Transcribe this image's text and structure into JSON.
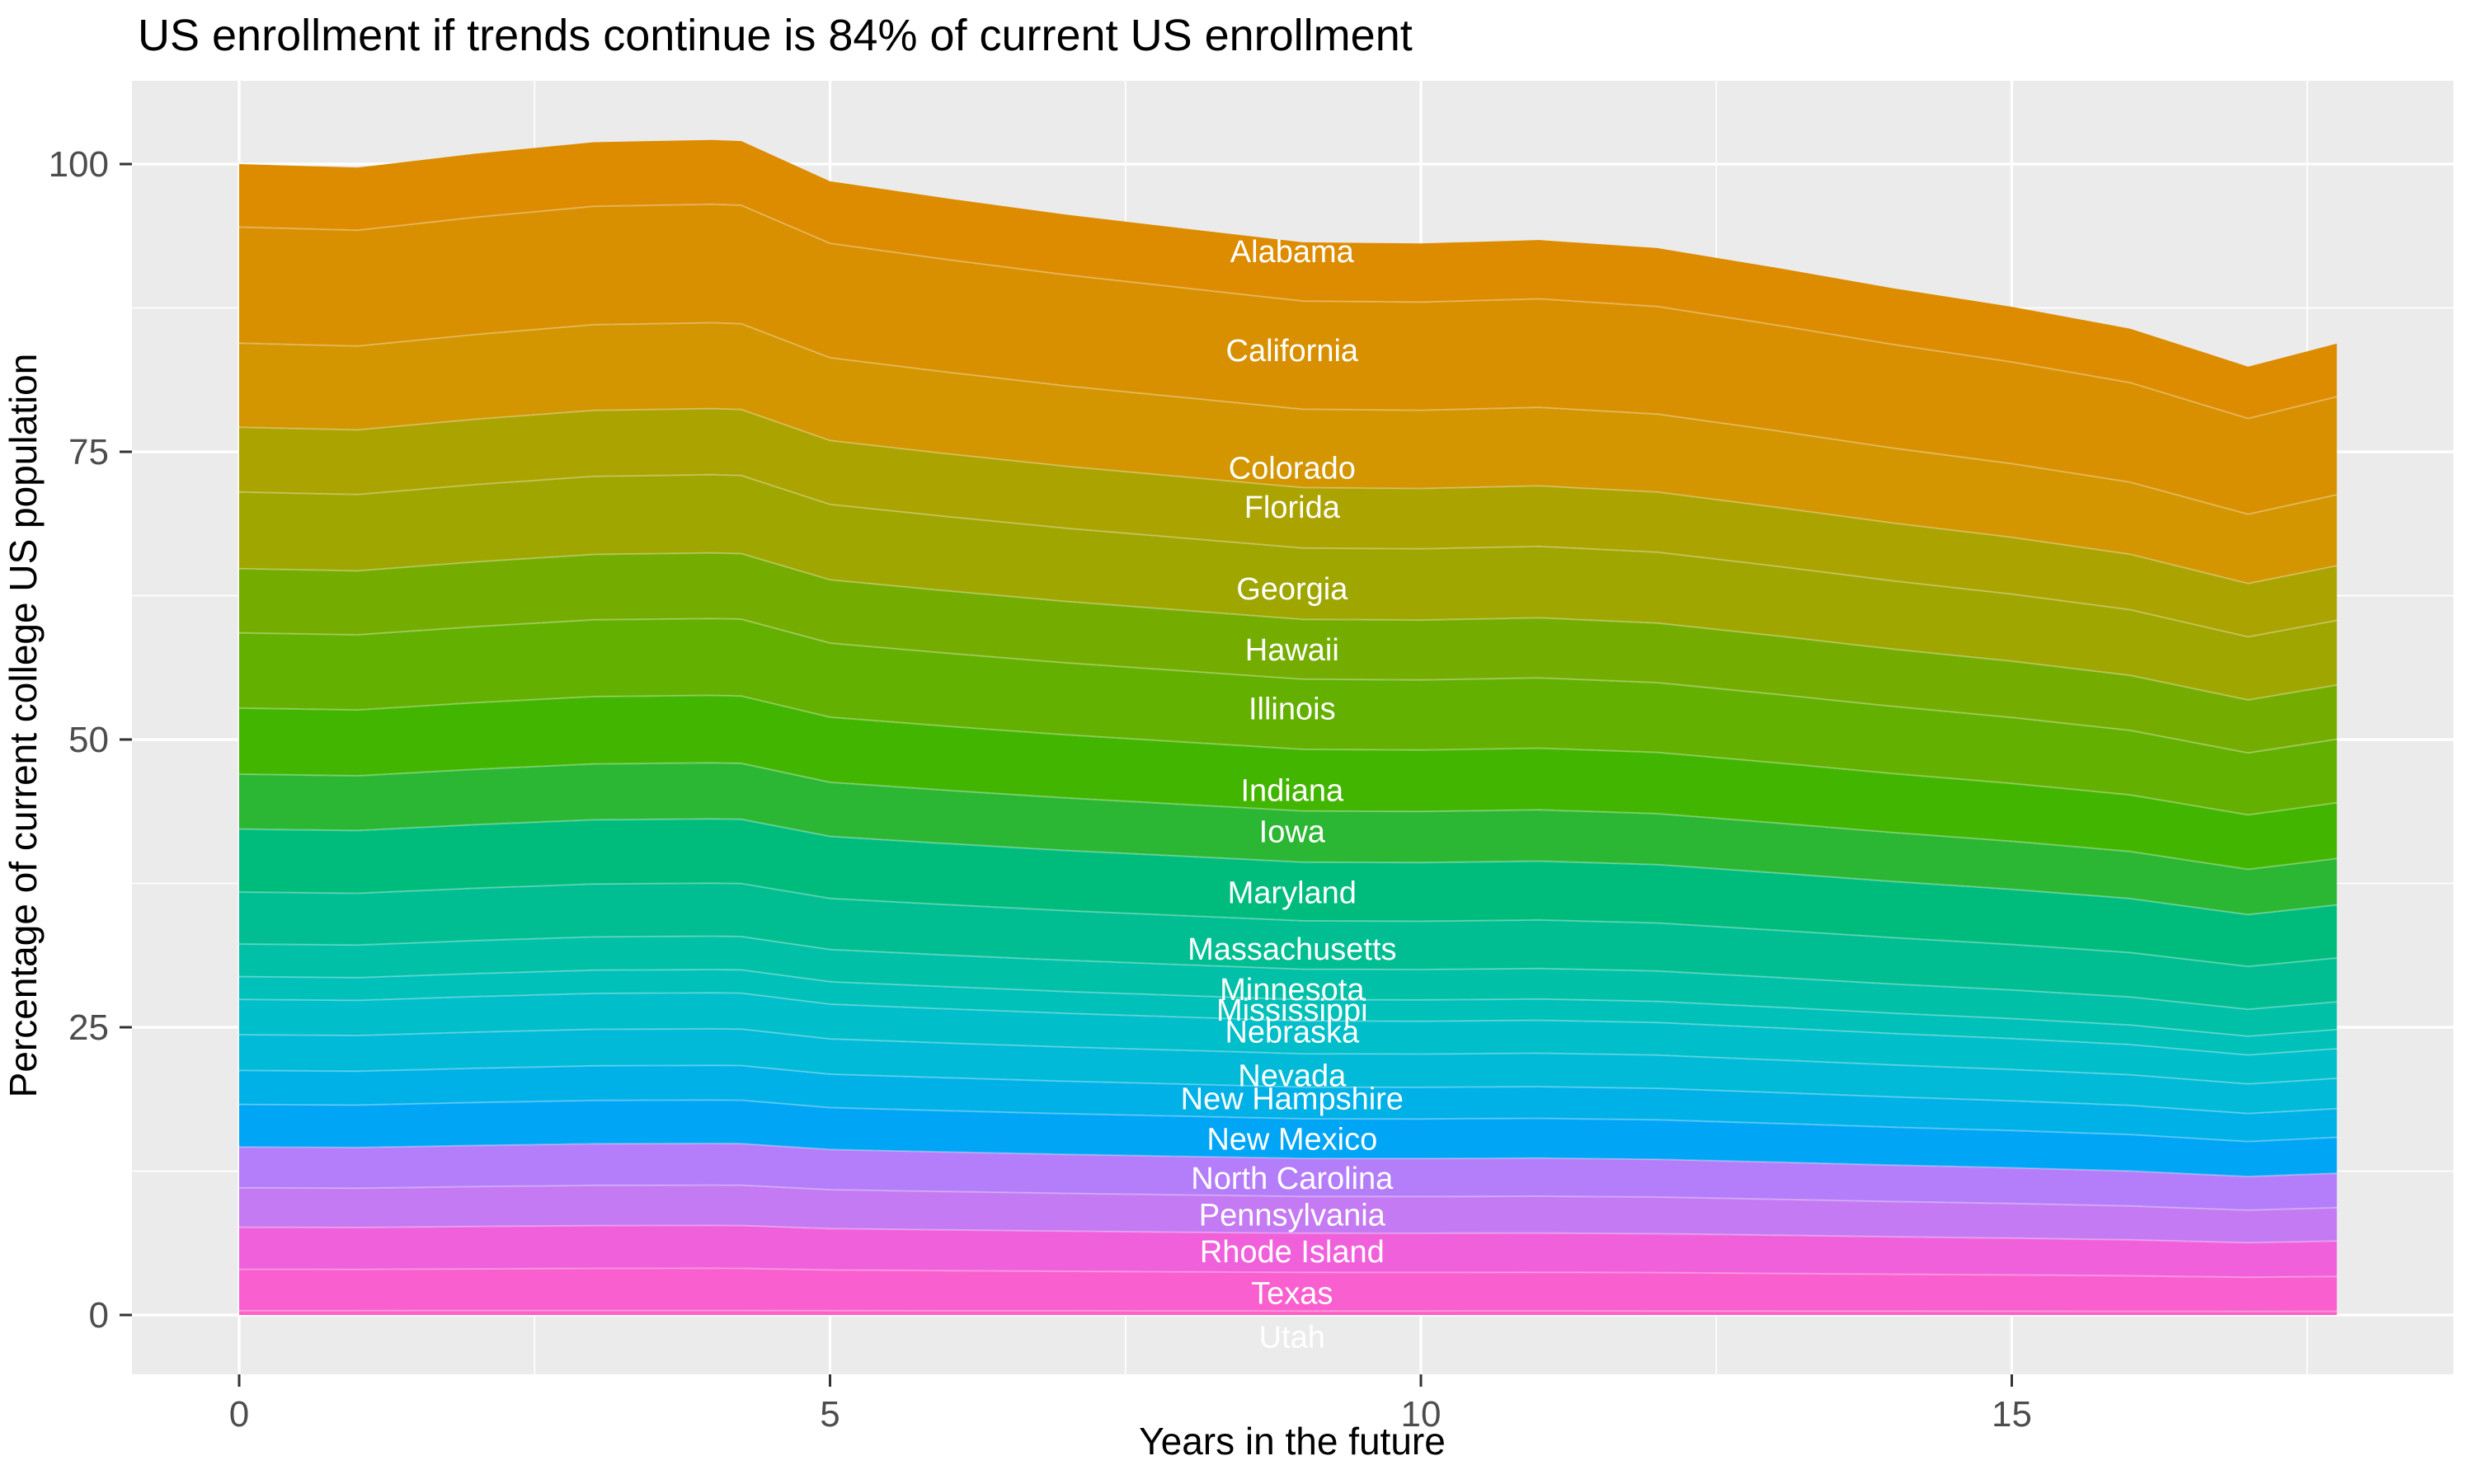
{
  "title": "US enrollment if trends continue is 84% of current US enrollment",
  "axes": {
    "x": {
      "label": "Years in the future",
      "ticks": [
        0,
        5,
        10,
        15
      ],
      "minor_ticks": [
        2.5,
        7.5,
        12.5,
        17.5
      ]
    },
    "y": {
      "label": "Percentage of current college US population",
      "ticks": [
        0,
        25,
        50,
        75,
        100
      ],
      "minor_ticks": [
        12.5,
        37.5,
        62.5,
        87.5
      ]
    }
  },
  "chart_data": {
    "type": "area",
    "stacked": true,
    "title": "US enrollment if trends continue is 84% of current US enrollment",
    "xlabel": "Years in the future",
    "ylabel": "Percentage of current college US population",
    "xlim": [
      -0.9,
      18.6
    ],
    "ylim": [
      -5.1,
      112.4
    ],
    "grid": true,
    "legend": false,
    "x": [
      0,
      1,
      2,
      3,
      4,
      4.25,
      5,
      6,
      7,
      8,
      9,
      10,
      11,
      12,
      13,
      14,
      15,
      16,
      17,
      17.75
    ],
    "total": [
      100,
      99.7,
      100.9,
      101.9,
      102.1,
      102.0,
      98.5,
      97.0,
      95.6,
      94.4,
      93.2,
      93.1,
      93.4,
      92.7,
      91.0,
      89.2,
      87.6,
      85.7,
      82.4,
      84.4
    ],
    "label_x": 8.91,
    "series": [
      {
        "name": "Alabama",
        "share_pct": 5.47,
        "label_y": 92.4,
        "color": "#DD8C00"
      },
      {
        "name": "California",
        "share_pct": 10.09,
        "label_y": 83.8,
        "color": "#D99000"
      },
      {
        "name": "Colorado",
        "share_pct": 7.3,
        "label_y": 73.6,
        "color": "#D39500"
      },
      {
        "name": "Florida",
        "share_pct": 5.63,
        "label_y": 70.2,
        "color": "#ABA300"
      },
      {
        "name": "Georgia",
        "share_pct": 6.65,
        "label_y": 63.1,
        "color": "#9FA600"
      },
      {
        "name": "Hawaii",
        "share_pct": 5.58,
        "label_y": 57.8,
        "color": "#74AD00"
      },
      {
        "name": "Illinois",
        "share_pct": 6.54,
        "label_y": 52.7,
        "color": "#63B000"
      },
      {
        "name": "Indiana",
        "share_pct": 5.74,
        "label_y": 45.6,
        "color": "#42B500"
      },
      {
        "name": "Iowa",
        "share_pct": 4.77,
        "label_y": 42.0,
        "color": "#2BB734"
      },
      {
        "name": "Maryland",
        "share_pct": 5.47,
        "label_y": 36.7,
        "color": "#00BC7C"
      },
      {
        "name": "Massachusetts",
        "share_pct": 4.51,
        "label_y": 31.8,
        "color": "#00BE92"
      },
      {
        "name": "Minnesota",
        "share_pct": 2.84,
        "label_y": 28.3,
        "color": "#00C0A8"
      },
      {
        "name": "Mississippi",
        "share_pct": 1.98,
        "label_y": 26.5,
        "color": "#00C0BA"
      },
      {
        "name": "Nebraska",
        "share_pct": 3.06,
        "label_y": 24.6,
        "color": "#00BECA"
      },
      {
        "name": "Nevada",
        "share_pct": 3.11,
        "label_y": 20.8,
        "color": "#00BAD8"
      },
      {
        "name": "New Hampshire",
        "share_pct": 2.95,
        "label_y": 18.8,
        "color": "#00B1E8"
      },
      {
        "name": "New Mexico",
        "share_pct": 3.7,
        "label_y": 15.3,
        "color": "#00A5F6"
      },
      {
        "name": "North Carolina",
        "share_pct": 3.54,
        "label_y": 11.9,
        "color": "#B47DF9"
      },
      {
        "name": "Pennsylvania",
        "share_pct": 3.43,
        "label_y": 8.7,
        "color": "#C47AF2"
      },
      {
        "name": "Rhode Island",
        "share_pct": 3.65,
        "label_y": 5.5,
        "color": "#F160DB"
      },
      {
        "name": "Texas",
        "share_pct": 3.59,
        "label_y": 1.9,
        "color": "#F95FCE"
      },
      {
        "name": "Utah",
        "share_pct": 0.38,
        "label_y": -1.9,
        "color": "#FB62C6"
      }
    ]
  },
  "colors": {
    "background": "#FFFFFF",
    "panel_bg": "#EBEBEB",
    "grid": "#FFFFFF",
    "tick_mark": "#333333",
    "tick_text": "#4D4D4D",
    "title_text": "#000000",
    "band_label_text": "#FFFFFF",
    "band_edge": "rgba(255,255,255,0.3)"
  }
}
